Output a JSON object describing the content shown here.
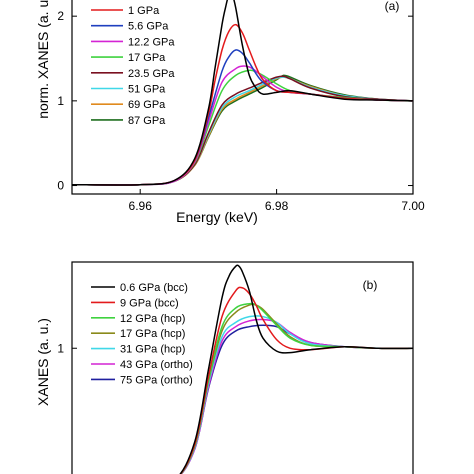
{
  "chart_data": [
    {
      "type": "line",
      "title": "",
      "panel_label": "(a)",
      "xlabel": "Energy (keV)",
      "ylabel": "norm. XANES (a. u.)",
      "xlim": [
        6.95,
        7.0
      ],
      "ylim": [
        -0.1,
        2.25
      ],
      "xticks": [
        6.96,
        6.98,
        7.0
      ],
      "xtick_labels": [
        "6.96",
        "6.98",
        "7.00"
      ],
      "yticks": [
        0,
        1,
        2
      ],
      "ytick_labels": [
        "0",
        "1",
        "2"
      ],
      "grid": false,
      "legend_position": "top-left",
      "series": [
        {
          "name": "",
          "color": "#000000",
          "x": [
            6.95,
            6.96,
            6.965,
            6.968,
            6.97,
            6.971,
            6.972,
            6.9725,
            6.973,
            6.9735,
            6.974,
            6.975,
            6.976,
            6.977,
            6.978,
            6.98,
            6.982,
            6.985,
            6.99,
            6.995,
            7.0
          ],
          "values": [
            0.01,
            0.01,
            0.06,
            0.32,
            0.9,
            1.4,
            1.9,
            2.1,
            2.25,
            2.25,
            2.1,
            1.65,
            1.3,
            1.15,
            1.08,
            1.1,
            1.12,
            1.08,
            1.02,
            1.01,
            1.0
          ]
        },
        {
          "name": "1 GPa",
          "color": "#e31a1c",
          "x": [
            6.95,
            6.96,
            6.965,
            6.968,
            6.97,
            6.971,
            6.972,
            6.973,
            6.974,
            6.975,
            6.976,
            6.977,
            6.978,
            6.98,
            6.982,
            6.985,
            6.99,
            6.995,
            7.0
          ],
          "values": [
            0.01,
            0.01,
            0.06,
            0.3,
            0.85,
            1.25,
            1.6,
            1.82,
            1.9,
            1.8,
            1.6,
            1.4,
            1.25,
            1.12,
            1.1,
            1.08,
            1.03,
            1.01,
            1.0
          ]
        },
        {
          "name": "5.6 GPa",
          "color": "#1f3fbf",
          "x": [
            6.95,
            6.96,
            6.965,
            6.968,
            6.97,
            6.972,
            6.973,
            6.974,
            6.975,
            6.976,
            6.977,
            6.978,
            6.98,
            6.982,
            6.985,
            6.99,
            6.995,
            7.0
          ],
          "values": [
            0.01,
            0.01,
            0.06,
            0.3,
            0.8,
            1.35,
            1.52,
            1.6,
            1.56,
            1.45,
            1.32,
            1.22,
            1.12,
            1.1,
            1.08,
            1.03,
            1.01,
            1.0
          ]
        },
        {
          "name": "12.2 GPa",
          "color": "#d424d4",
          "x": [
            6.95,
            6.96,
            6.965,
            6.968,
            6.97,
            6.972,
            6.974,
            6.975,
            6.976,
            6.977,
            6.978,
            6.98,
            6.982,
            6.985,
            6.99,
            6.995,
            7.0
          ],
          "values": [
            0.01,
            0.01,
            0.05,
            0.28,
            0.75,
            1.22,
            1.38,
            1.41,
            1.4,
            1.35,
            1.28,
            1.16,
            1.1,
            1.08,
            1.03,
            1.01,
            1.0
          ]
        },
        {
          "name": "17 GPa",
          "color": "#3fd23f",
          "x": [
            6.95,
            6.96,
            6.965,
            6.968,
            6.97,
            6.972,
            6.974,
            6.976,
            6.977,
            6.978,
            6.98,
            6.982,
            6.985,
            6.99,
            6.995,
            7.0
          ],
          "values": [
            0.01,
            0.01,
            0.05,
            0.27,
            0.7,
            1.12,
            1.3,
            1.36,
            1.34,
            1.3,
            1.2,
            1.12,
            1.08,
            1.04,
            1.01,
            1.0
          ]
        },
        {
          "name": "23.5 GPa",
          "color": "#7a1020",
          "x": [
            6.95,
            6.96,
            6.965,
            6.968,
            6.97,
            6.972,
            6.974,
            6.976,
            6.978,
            6.98,
            6.981,
            6.982,
            6.985,
            6.99,
            6.995,
            7.0
          ],
          "values": [
            0.01,
            0.01,
            0.05,
            0.25,
            0.62,
            0.95,
            1.08,
            1.15,
            1.22,
            1.28,
            1.29,
            1.26,
            1.15,
            1.05,
            1.02,
            1.0
          ]
        },
        {
          "name": "51 GPa",
          "color": "#40d8e8",
          "x": [
            6.95,
            6.96,
            6.965,
            6.968,
            6.97,
            6.972,
            6.974,
            6.976,
            6.978,
            6.98,
            6.981,
            6.982,
            6.985,
            6.99,
            6.995,
            7.0
          ],
          "values": [
            0.01,
            0.01,
            0.05,
            0.25,
            0.6,
            0.92,
            1.05,
            1.12,
            1.2,
            1.27,
            1.28,
            1.26,
            1.16,
            1.06,
            1.02,
            1.0
          ]
        },
        {
          "name": "69 GPa",
          "color": "#e08a1e",
          "x": [
            6.95,
            6.96,
            6.965,
            6.968,
            6.97,
            6.972,
            6.974,
            6.976,
            6.978,
            6.98,
            6.981,
            6.982,
            6.985,
            6.99,
            6.995,
            7.0
          ],
          "values": [
            0.01,
            0.01,
            0.05,
            0.24,
            0.58,
            0.9,
            1.02,
            1.1,
            1.18,
            1.26,
            1.28,
            1.26,
            1.17,
            1.06,
            1.02,
            1.0
          ]
        },
        {
          "name": "87 GPa",
          "color": "#1e6e1e",
          "x": [
            6.95,
            6.96,
            6.965,
            6.968,
            6.97,
            6.972,
            6.974,
            6.976,
            6.978,
            6.98,
            6.981,
            6.982,
            6.985,
            6.99,
            6.995,
            7.0
          ],
          "values": [
            0.01,
            0.01,
            0.05,
            0.24,
            0.57,
            0.88,
            1.0,
            1.08,
            1.16,
            1.25,
            1.3,
            1.28,
            1.18,
            1.07,
            1.02,
            1.0
          ]
        }
      ]
    },
    {
      "type": "line",
      "title": "",
      "panel_label": "(b)",
      "xlabel": "",
      "ylabel": "XANES (a. u.)",
      "xlim": [
        6.95,
        7.0
      ],
      "ylim": [
        0,
        1.6
      ],
      "yticks": [
        1
      ],
      "ytick_labels": [
        "1"
      ],
      "grid": false,
      "legend_position": "top-left",
      "series": [
        {
          "name": "0.6 GPa (bcc)",
          "color": "#000000",
          "x": [
            6.95,
            6.96,
            6.965,
            6.968,
            6.97,
            6.972,
            6.973,
            6.974,
            6.9745,
            6.975,
            6.976,
            6.977,
            6.978,
            6.98,
            6.982,
            6.985,
            6.99,
            6.995,
            7.0
          ],
          "values": [
            0.0,
            0.02,
            0.08,
            0.35,
            0.85,
            1.35,
            1.5,
            1.57,
            1.57,
            1.53,
            1.4,
            1.2,
            1.07,
            0.98,
            0.97,
            0.99,
            1.01,
            1.0,
            1.0
          ]
        },
        {
          "name": "9 GPa (bcc)",
          "color": "#e31a1c",
          "x": [
            6.95,
            6.96,
            6.965,
            6.968,
            6.97,
            6.972,
            6.974,
            6.975,
            6.976,
            6.977,
            6.978,
            6.98,
            6.982,
            6.985,
            6.99,
            6.995,
            7.0
          ],
          "values": [
            0.0,
            0.02,
            0.08,
            0.33,
            0.8,
            1.22,
            1.4,
            1.42,
            1.38,
            1.3,
            1.2,
            1.06,
            1.0,
            0.99,
            1.01,
            1.0,
            1.0
          ]
        },
        {
          "name": "12 GPa (hcp)",
          "color": "#3fd23f",
          "x": [
            6.95,
            6.96,
            6.965,
            6.968,
            6.97,
            6.972,
            6.974,
            6.976,
            6.977,
            6.978,
            6.98,
            6.982,
            6.985,
            6.99,
            6.995,
            7.0
          ],
          "values": [
            0.0,
            0.02,
            0.08,
            0.32,
            0.78,
            1.15,
            1.28,
            1.31,
            1.3,
            1.26,
            1.16,
            1.07,
            1.02,
            1.01,
            1.0,
            1.0
          ]
        },
        {
          "name": "17 GPa (hcp)",
          "color": "#8a8a1a",
          "x": [
            6.95,
            6.96,
            6.965,
            6.968,
            6.97,
            6.972,
            6.974,
            6.976,
            6.977,
            6.978,
            6.98,
            6.982,
            6.985,
            6.99,
            6.995,
            7.0
          ],
          "values": [
            0.0,
            0.02,
            0.08,
            0.32,
            0.77,
            1.12,
            1.25,
            1.3,
            1.3,
            1.27,
            1.17,
            1.08,
            1.02,
            1.01,
            1.0,
            1.0
          ]
        },
        {
          "name": "31 GPa (hcp)",
          "color": "#40d8e8",
          "x": [
            6.95,
            6.96,
            6.965,
            6.968,
            6.97,
            6.972,
            6.974,
            6.976,
            6.978,
            6.98,
            6.982,
            6.985,
            6.99,
            6.995,
            7.0
          ],
          "values": [
            0.0,
            0.02,
            0.08,
            0.31,
            0.75,
            1.08,
            1.18,
            1.22,
            1.22,
            1.18,
            1.1,
            1.03,
            1.01,
            1.0,
            1.0
          ]
        },
        {
          "name": "43 GPa (ortho)",
          "color": "#d424d4",
          "x": [
            6.95,
            6.96,
            6.965,
            6.968,
            6.97,
            6.972,
            6.974,
            6.976,
            6.978,
            6.98,
            6.982,
            6.985,
            6.99,
            6.995,
            7.0
          ],
          "values": [
            0.0,
            0.02,
            0.08,
            0.3,
            0.73,
            1.05,
            1.15,
            1.19,
            1.2,
            1.18,
            1.11,
            1.04,
            1.01,
            1.0,
            1.0
          ]
        },
        {
          "name": "75 GPa (ortho)",
          "color": "#1f1f9f",
          "x": [
            6.95,
            6.96,
            6.965,
            6.968,
            6.97,
            6.972,
            6.974,
            6.976,
            6.978,
            6.98,
            6.982,
            6.985,
            6.99,
            6.995,
            7.0
          ],
          "values": [
            0.0,
            0.02,
            0.08,
            0.3,
            0.72,
            1.02,
            1.12,
            1.15,
            1.16,
            1.15,
            1.1,
            1.04,
            1.01,
            1.0,
            1.0
          ]
        }
      ]
    }
  ]
}
